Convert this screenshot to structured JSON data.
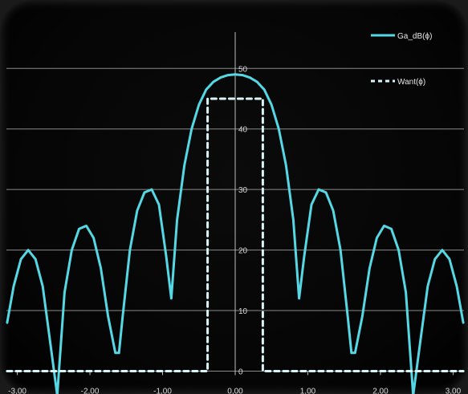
{
  "chart_data": {
    "type": "line",
    "title": "",
    "xlabel": "",
    "ylabel": "",
    "xlim": [
      -3.15,
      3.15
    ],
    "ylim": [
      -1,
      56
    ],
    "grid": "horizontal",
    "legend_position": "top-right",
    "x_ticks": [
      {
        "value": -3.0,
        "label": "-3,00"
      },
      {
        "value": -2.0,
        "label": "-2,00"
      },
      {
        "value": -1.0,
        "label": "-1,00"
      },
      {
        "value": 0.0,
        "label": "0,00"
      },
      {
        "value": 1.0,
        "label": "1,00"
      },
      {
        "value": 2.0,
        "label": "2,00"
      },
      {
        "value": 3.0,
        "label": "3,00"
      }
    ],
    "y_ticks": [
      {
        "value": 0,
        "label": "0"
      },
      {
        "value": 10,
        "label": "10"
      },
      {
        "value": 20,
        "label": "20"
      },
      {
        "value": 30,
        "label": "30"
      },
      {
        "value": 40,
        "label": "40"
      },
      {
        "value": 50,
        "label": "50"
      }
    ],
    "series": [
      {
        "name": "Ga_dB(ϕ)",
        "style": "solid",
        "color": "#55d8e4",
        "x": [
          -3.14,
          -3.05,
          -2.95,
          -2.85,
          -2.75,
          -2.65,
          -2.55,
          -2.45,
          -2.35,
          -2.25,
          -2.15,
          -2.05,
          -1.95,
          -1.85,
          -1.75,
          -1.65,
          -1.6,
          -1.55,
          -1.45,
          -1.35,
          -1.25,
          -1.15,
          -1.05,
          -0.95,
          -0.88,
          -0.8,
          -0.7,
          -0.6,
          -0.5,
          -0.4,
          -0.3,
          -0.2,
          -0.1,
          0.0,
          0.1,
          0.2,
          0.3,
          0.4,
          0.5,
          0.6,
          0.7,
          0.8,
          0.88,
          0.95,
          1.05,
          1.15,
          1.25,
          1.35,
          1.45,
          1.55,
          1.6,
          1.65,
          1.75,
          1.85,
          1.95,
          2.05,
          2.15,
          2.25,
          2.35,
          2.45,
          2.55,
          2.65,
          2.75,
          2.85,
          2.95,
          3.05,
          3.14
        ],
        "y": [
          8,
          14,
          18.5,
          20,
          18.5,
          14,
          5,
          -4,
          13,
          20,
          23.5,
          24,
          22,
          17,
          9,
          3,
          3,
          9,
          20,
          26.5,
          29.5,
          30,
          27.5,
          19,
          12,
          25,
          34,
          40,
          44,
          46.5,
          47.8,
          48.5,
          48.9,
          49,
          48.9,
          48.5,
          47.8,
          46.5,
          44,
          40,
          34,
          25,
          12,
          19,
          27.5,
          30,
          29.5,
          26.5,
          20,
          9,
          3,
          3,
          9,
          17,
          22,
          24,
          23.5,
          20,
          13,
          -4,
          5,
          14,
          18.5,
          20,
          18.5,
          14,
          8
        ]
      },
      {
        "name": "Want(ϕ)",
        "style": "dashed",
        "color": "#d8f4f6",
        "x": [
          -3.14,
          -0.38,
          -0.38,
          0.38,
          0.38,
          3.14
        ],
        "y": [
          0,
          0,
          45,
          45,
          0,
          0
        ]
      }
    ]
  }
}
